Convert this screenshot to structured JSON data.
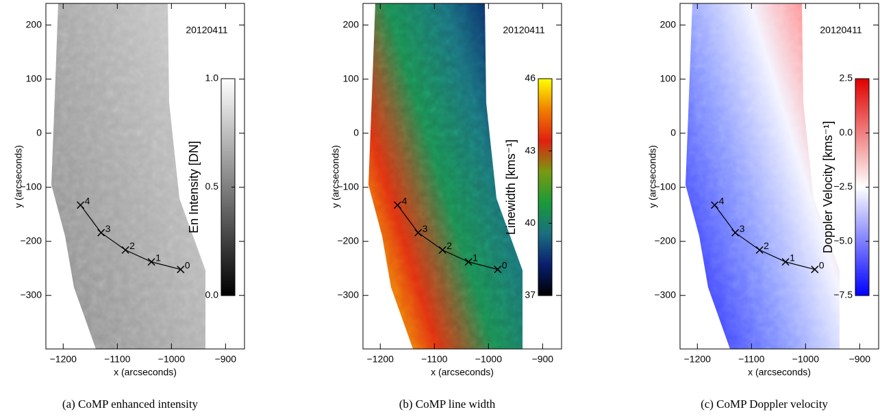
{
  "chart_data": [
    {
      "type": "image",
      "caption": "(a) CoMP enhanced intensity",
      "date": "20120411",
      "xlabel": "x (arcseconds)",
      "ylabel": "y (arcseconds)",
      "xlim": [
        -1232,
        -865
      ],
      "ylim": [
        -399,
        240
      ],
      "xticks": [
        {
          "value": -1200,
          "label": "−1200"
        },
        {
          "value": -1100,
          "label": "−1100"
        },
        {
          "value": -1000,
          "label": "−1000"
        },
        {
          "value": -900,
          "label": "−900"
        }
      ],
      "yticks": [
        200,
        100,
        0,
        {
          "value": -100,
          "label": "−100"
        },
        {
          "value": -200,
          "label": "−200"
        },
        {
          "value": -300,
          "label": "−300"
        }
      ],
      "colorbar": {
        "label": "En Intensity [DN]",
        "lim": [
          0,
          1
        ],
        "ticks": [
          {
            "value": 0,
            "label": "0.0"
          },
          {
            "value": 0.5,
            "label": "0.5"
          },
          {
            "value": 1,
            "label": "1.0"
          }
        ],
        "colors": [
          "#000000",
          "#ffffff"
        ]
      },
      "track": {
        "labels": [
          "0",
          "1",
          "2",
          "3",
          "4"
        ],
        "x": [
          -983,
          -1037,
          -1085,
          -1130,
          -1168
        ],
        "y": [
          -252,
          -238,
          -216,
          -184,
          -133
        ]
      }
    },
    {
      "type": "image",
      "caption": "(b) CoMP line width",
      "date": "20120411",
      "xlabel": "x (arcseconds)",
      "ylabel": "y (arcseconds)",
      "xlim": [
        -1232,
        -865
      ],
      "ylim": [
        -399,
        240
      ],
      "xticks": [
        {
          "value": -1200,
          "label": "−1200"
        },
        {
          "value": -1100,
          "label": "−1100"
        },
        {
          "value": -1000,
          "label": "−1000"
        },
        {
          "value": -900,
          "label": "−900"
        }
      ],
      "yticks": [
        200,
        100,
        0,
        {
          "value": -100,
          "label": "−100"
        },
        {
          "value": -200,
          "label": "−200"
        },
        {
          "value": -300,
          "label": "−300"
        }
      ],
      "colorbar": {
        "label": "Linewidth [kms⁻¹]",
        "lim": [
          37,
          46
        ],
        "ticks": [
          37,
          40,
          43,
          46
        ],
        "colors": [
          "#000000",
          "#0a1e6e",
          "#1a6e80",
          "#1a9a3a",
          "#7a9a10",
          "#e02010",
          "#f08000",
          "#ffff00"
        ]
      },
      "track": {
        "labels": [
          "0",
          "1",
          "2",
          "3",
          "4"
        ],
        "x": [
          -983,
          -1037,
          -1085,
          -1130,
          -1168
        ],
        "y": [
          -252,
          -238,
          -216,
          -184,
          -133
        ]
      }
    },
    {
      "type": "image",
      "caption": "(c) CoMP Doppler velocity",
      "date": "20120411",
      "xlabel": "x (arcseconds)",
      "ylabel": "y (arcseconds)",
      "xlim": [
        -1232,
        -865
      ],
      "ylim": [
        -399,
        240
      ],
      "xticks": [
        {
          "value": -1200,
          "label": "−1200"
        },
        {
          "value": -1100,
          "label": "−1100"
        },
        {
          "value": -1000,
          "label": "−1000"
        },
        {
          "value": -900,
          "label": "−900"
        }
      ],
      "yticks": [
        200,
        100,
        0,
        {
          "value": -100,
          "label": "−100"
        },
        {
          "value": -200,
          "label": "−200"
        },
        {
          "value": -300,
          "label": "−300"
        }
      ],
      "colorbar": {
        "label": "Doppler Velocity [kms⁻¹]",
        "lim": [
          -7.5,
          2.5
        ],
        "ticks": [
          {
            "value": -7.5,
            "label": "−7.5"
          },
          {
            "value": -5,
            "label": "−5.0"
          },
          {
            "value": -2.5,
            "label": "−2.5"
          },
          {
            "value": 0,
            "label": "0.0"
          },
          2.5
        ],
        "colors": [
          "#0000ff",
          "#ffffff",
          "#e00000"
        ]
      },
      "track": {
        "labels": [
          "0",
          "1",
          "2",
          "3",
          "4"
        ],
        "x": [
          -983,
          -1037,
          -1085,
          -1130,
          -1168
        ],
        "y": [
          -252,
          -238,
          -216,
          -184,
          -133
        ]
      }
    }
  ]
}
